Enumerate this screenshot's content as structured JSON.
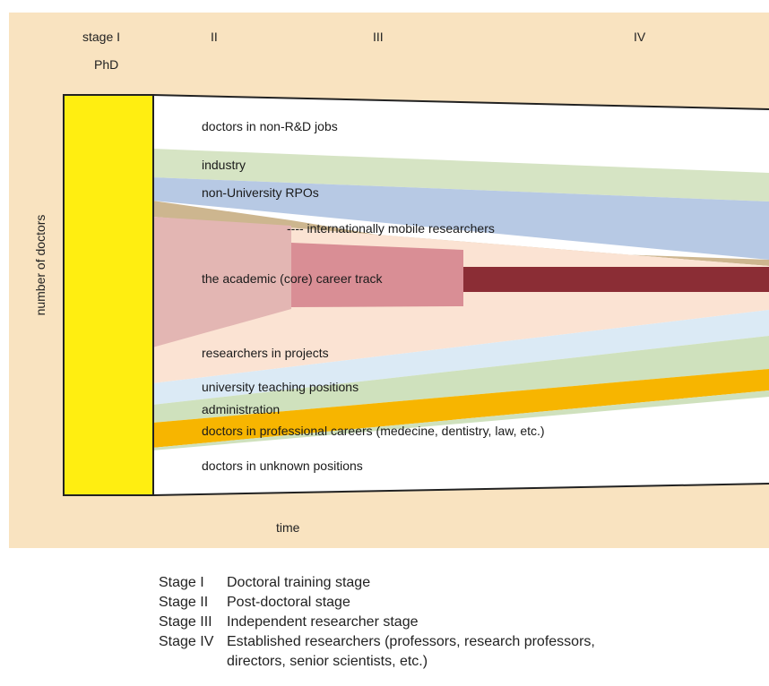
{
  "stages": {
    "i": "stage I",
    "ii": "II",
    "iii": "III",
    "iv": "IV"
  },
  "phd_label": "PhD",
  "y_axis_label": "number of doctors",
  "x_axis_label": "time",
  "bands": {
    "non_rd": "doctors in non-R&D jobs",
    "industry": "industry",
    "non_university": "non-University RPOs",
    "mobile": "---- internationally mobile researchers",
    "academic": "the academic (core) career track",
    "projects": "researchers in projects",
    "teaching": "university teaching positions",
    "administration": "administration",
    "professional": "doctors in professional careers (medecine, dentistry, law, etc.)",
    "unknown": "doctors in unknown positions"
  },
  "legend": [
    {
      "key": "Stage I",
      "desc": "Doctoral training stage"
    },
    {
      "key": "Stage II",
      "desc": "Post-doctoral stage"
    },
    {
      "key": "Stage III",
      "desc": "Independent researcher stage"
    },
    {
      "key": "Stage IV",
      "desc": "Established researchers (professors, research professors, directors, senior scientists, etc.)"
    }
  ],
  "colors": {
    "panel": "#f9e3c0",
    "phd_bar": "#ffee11",
    "industry": "#d6e4c4",
    "non_university": "#b7c9e4",
    "mobile": "#cdb68f",
    "academic_stage2": "#e3b6b3",
    "academic_stage3": "#d98e95",
    "academic_stage4": "#8b2d35",
    "projects": "#fbe3d3",
    "teaching": "#dbeaf5",
    "administration": "#cfe1bd",
    "professional": "#f7b500"
  }
}
